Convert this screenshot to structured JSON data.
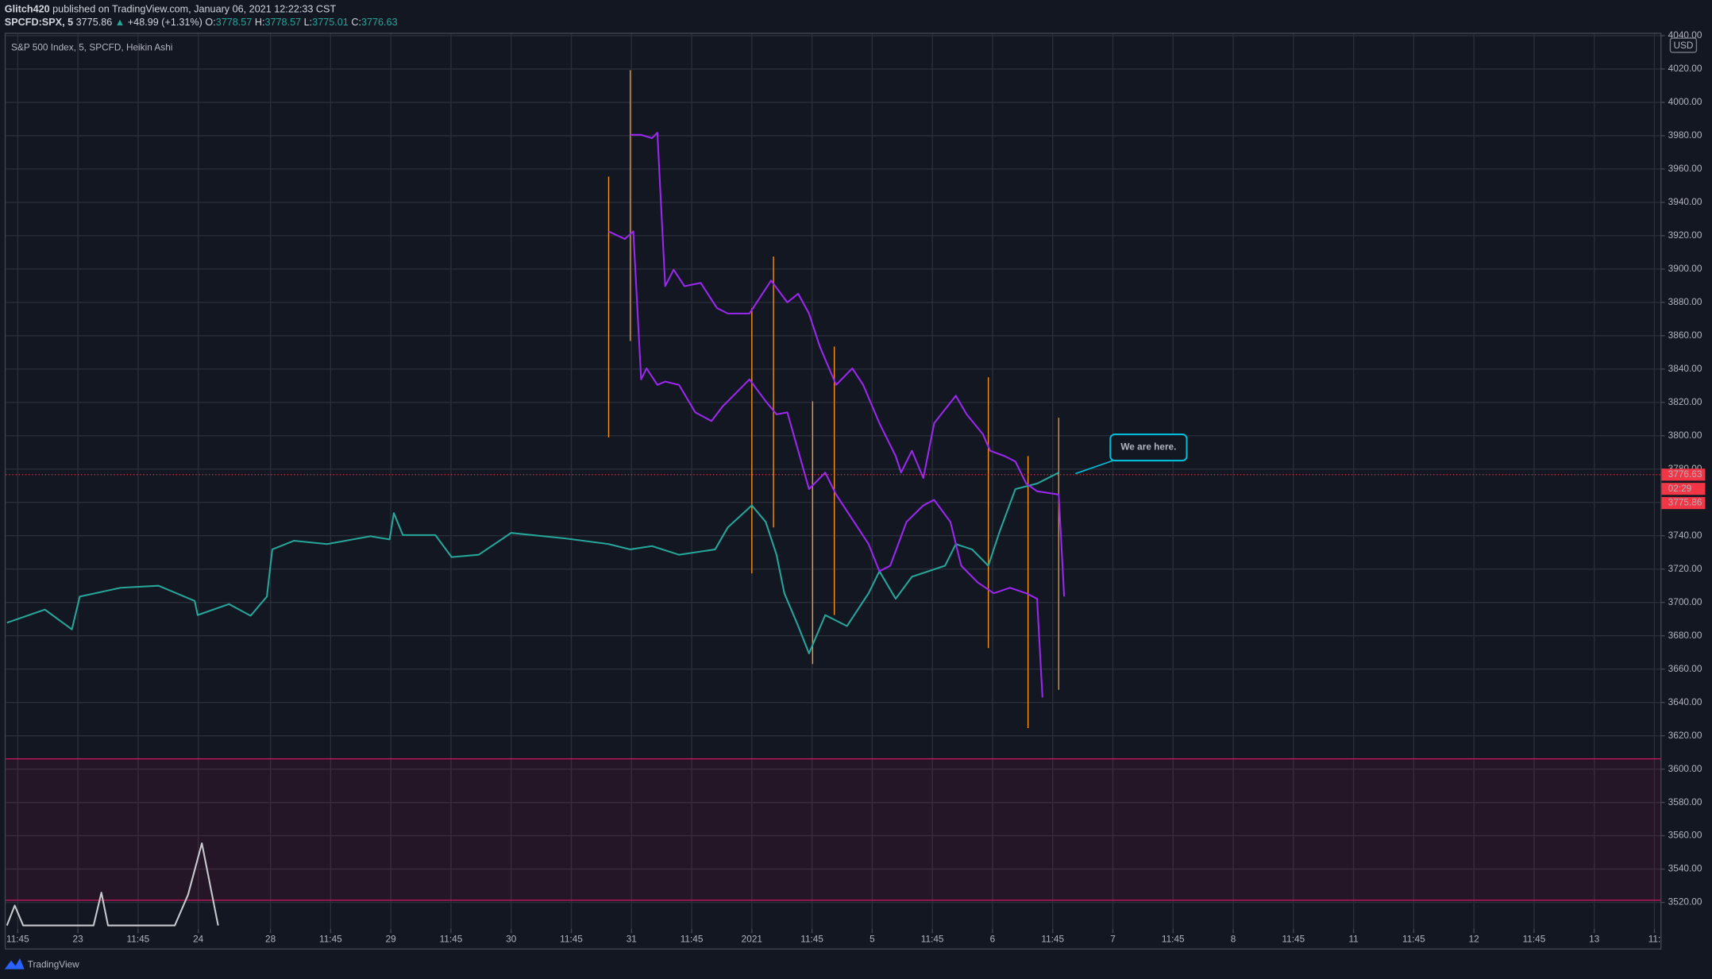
{
  "header": {
    "author": "Glitch420",
    "published": " published on TradingView.com, January 06, 2021 12:22:33 CST",
    "symbol": "SPCFD:SPX, 5",
    "close": "3775.86",
    "arrow": "▲",
    "change": "+48.99 (+1.31%)",
    "o_label": "O:",
    "o": "3778.57",
    "h_label": "H:",
    "h": "3778.57",
    "l_label": "L:",
    "l": "3775.01",
    "c_label": "C:",
    "c": "3776.63"
  },
  "chart_data": {
    "type": "line",
    "title": "S&P 500 Index, 5, SPCFD, Heikin Ashi",
    "y_unit": "USD",
    "annotation": "We are here.",
    "xlim": [
      -0.2,
      27.3
    ],
    "ylim": [
      3504.2,
      4041.1
    ],
    "grid": true,
    "xticks": [
      {
        "value": 0,
        "label": "11:45"
      },
      {
        "value": 1,
        "label": "23"
      },
      {
        "value": 2,
        "label": "11:45"
      },
      {
        "value": 3,
        "label": "24"
      },
      {
        "value": 4.2,
        "label": "28"
      },
      {
        "value": 5.2,
        "label": "11:45"
      },
      {
        "value": 6.2,
        "label": "29"
      },
      {
        "value": 7.2,
        "label": "11:45"
      },
      {
        "value": 8.2,
        "label": "30"
      },
      {
        "value": 9.2,
        "label": "11:45"
      },
      {
        "value": 10.2,
        "label": "31"
      },
      {
        "value": 11.2,
        "label": "11:45"
      },
      {
        "value": 12.2,
        "label": "2021"
      },
      {
        "value": 13.2,
        "label": "11:45"
      },
      {
        "value": 14.2,
        "label": "5"
      },
      {
        "value": 15.2,
        "label": "11:45"
      },
      {
        "value": 16.2,
        "label": "6"
      },
      {
        "value": 17.2,
        "label": "11:45"
      },
      {
        "value": 18.2,
        "label": "7"
      },
      {
        "value": 19.2,
        "label": "11:45"
      },
      {
        "value": 20.2,
        "label": "8"
      },
      {
        "value": 21.2,
        "label": "11:45"
      },
      {
        "value": 22.2,
        "label": "11"
      },
      {
        "value": 23.2,
        "label": "11:45"
      },
      {
        "value": 24.2,
        "label": "12"
      },
      {
        "value": 25.2,
        "label": "11:45"
      },
      {
        "value": 26.2,
        "label": "13"
      },
      {
        "value": 27.2,
        "label": "11:"
      }
    ],
    "yticks": [
      {
        "value": 3520,
        "label": "3520.00"
      },
      {
        "value": 3540,
        "label": "3540.00"
      },
      {
        "value": 3560,
        "label": "3560.00"
      },
      {
        "value": 3580,
        "label": "3580.00"
      },
      {
        "value": 3600,
        "label": "3600.00"
      },
      {
        "value": 3620,
        "label": "3620.00"
      },
      {
        "value": 3640,
        "label": "3640.00"
      },
      {
        "value": 3660,
        "label": "3660.00"
      },
      {
        "value": 3680,
        "label": "3680.00"
      },
      {
        "value": 3700,
        "label": "3700.00"
      },
      {
        "value": 3720,
        "label": "3720.00"
      },
      {
        "value": 3740,
        "label": "3740.00"
      },
      {
        "value": 3760,
        "label": "3760.00"
      },
      {
        "value": 3780,
        "label": "3780.00"
      },
      {
        "value": 3800,
        "label": "3800.00"
      },
      {
        "value": 3820,
        "label": "3820.00"
      },
      {
        "value": 3840,
        "label": "3840.00"
      },
      {
        "value": 3860,
        "label": "3860.00"
      },
      {
        "value": 3880,
        "label": "3880.00"
      },
      {
        "value": 3900,
        "label": "3900.00"
      },
      {
        "value": 3920,
        "label": "3920.00"
      },
      {
        "value": 3940,
        "label": "3940.00"
      },
      {
        "value": 3960,
        "label": "3960.00"
      },
      {
        "value": 3980,
        "label": "3980.00"
      },
      {
        "value": 4000,
        "label": "4000.00"
      },
      {
        "value": 4020,
        "label": "4020.00"
      },
      {
        "value": 4040,
        "label": "4040.00"
      }
    ],
    "band": {
      "low": 3521.3,
      "high": 3606.2,
      "color": "#c2185b"
    },
    "series": [
      {
        "color": "#26a69a",
        "x": [
          -0.18,
          0.45,
          0.9,
          1.03,
          1.71,
          2.34,
          2.94,
          2.99,
          3.51,
          3.87,
          4.14,
          4.23,
          4.59,
          5.14,
          5.86,
          6.18,
          6.25,
          6.4,
          6.94,
          7.21,
          7.66,
          8.2,
          9.1,
          9.82,
          10.18,
          10.54,
          10.99,
          11.59,
          11.8,
          12.2,
          12.43,
          12.61,
          12.74,
          12.97,
          13.15,
          13.42,
          13.78,
          14.14,
          14.32,
          14.59,
          14.86,
          15.41,
          15.59,
          15.86,
          16.13,
          16.31,
          16.58,
          16.94,
          17.3
        ],
        "values": [
          3687.8,
          3695.7,
          3683.8,
          3703.5,
          3708.8,
          3710,
          3700.9,
          3692.4,
          3699,
          3692,
          3703.5,
          3731.8,
          3737,
          3735,
          3739.7,
          3737.8,
          3753.6,
          3740.4,
          3740.4,
          3727.2,
          3728.6,
          3741.7,
          3738.4,
          3735,
          3731.8,
          3733.8,
          3728.6,
          3731.8,
          3745,
          3758.2,
          3748.3,
          3728.6,
          3705.5,
          3685.8,
          3669.4,
          3692.4,
          3685.8,
          3705.5,
          3718.7,
          3702.2,
          3715.4,
          3722,
          3735,
          3731.8,
          3722,
          3741.7,
          3768,
          3771.3,
          3777.9
        ]
      },
      {
        "color": "#9c27f0",
        "x": [
          9.82,
          10.09,
          10.23,
          10.36,
          10.45,
          10.63,
          10.76,
          10.99,
          11.26,
          11.53,
          11.71,
          12.16,
          12.43,
          12.61,
          12.79,
          13.15,
          13.42,
          13.6,
          14.14,
          14.32,
          14.5,
          14.77,
          15.05,
          15.23,
          15.5,
          15.68,
          15.95,
          16.22,
          16.49,
          16.76,
          16.94,
          17.03
        ],
        "values": [
          3922.6,
          3918,
          3922.6,
          3833.8,
          3840.4,
          3830.5,
          3832.5,
          3830.5,
          3814,
          3808.8,
          3817.4,
          3833.8,
          3820.7,
          3812.8,
          3814,
          3768,
          3777.9,
          3764.7,
          3735,
          3718.7,
          3722,
          3748.3,
          3758.2,
          3761.5,
          3748.3,
          3722,
          3712.1,
          3705.5,
          3708.8,
          3705.5,
          3702.2,
          3643
        ]
      },
      {
        "color": "#9c27f0",
        "x": [
          10.18,
          10.36,
          10.54,
          10.63,
          10.76,
          10.9,
          11.08,
          11.35,
          11.62,
          11.8,
          12.16,
          12.52,
          12.79,
          12.97,
          13.15,
          13.33,
          13.6,
          13.87,
          14.05,
          14.32,
          14.59,
          14.68,
          14.86,
          15.05,
          15.23,
          15.59,
          15.77,
          16.04,
          16.16,
          16.4,
          16.58,
          16.76,
          16.94,
          17.3,
          17.39
        ],
        "values": [
          3980.5,
          3980.5,
          3978.5,
          3981.8,
          3889.7,
          3899.6,
          3889.7,
          3891.7,
          3876.6,
          3873.3,
          3873.3,
          3893.1,
          3880,
          3885.2,
          3873.3,
          3853.5,
          3830.5,
          3840.4,
          3830.5,
          3807.5,
          3787.8,
          3777.9,
          3791,
          3774.6,
          3807.5,
          3824,
          3812.8,
          3800.9,
          3791,
          3787.8,
          3784.5,
          3771.3,
          3766.7,
          3764.7,
          3703.5
        ]
      },
      {
        "color": "#c8cad0",
        "x": [
          -0.18,
          -0.05,
          0.09,
          1.26,
          1.39,
          1.5,
          2.61,
          2.83,
          3.06,
          3.33
        ],
        "values": [
          3506.2,
          3518.2,
          3506.2,
          3506.2,
          3525.9,
          3506.2,
          3506.2,
          3524.6,
          3555.5,
          3506.2
        ]
      }
    ],
    "ranges": {
      "color": "#f7931a",
      "x": [
        9.82,
        10.18,
        12.2,
        12.56,
        13.21,
        13.57,
        16.13,
        16.79,
        17.3
      ],
      "low": [
        3799,
        3856.8,
        3717.4,
        3745,
        3663,
        3692.4,
        3672.6,
        3624.6,
        3647.6
      ],
      "high": [
        3955.5,
        4019.3,
        3876.6,
        3907.5,
        3820.7,
        3853.5,
        3835.1,
        3787.8,
        3810.8
      ]
    },
    "price_tags": [
      3776.63,
      3775.86
    ],
    "countdown": "02:29"
  },
  "footer": {
    "brand": "TradingView"
  }
}
